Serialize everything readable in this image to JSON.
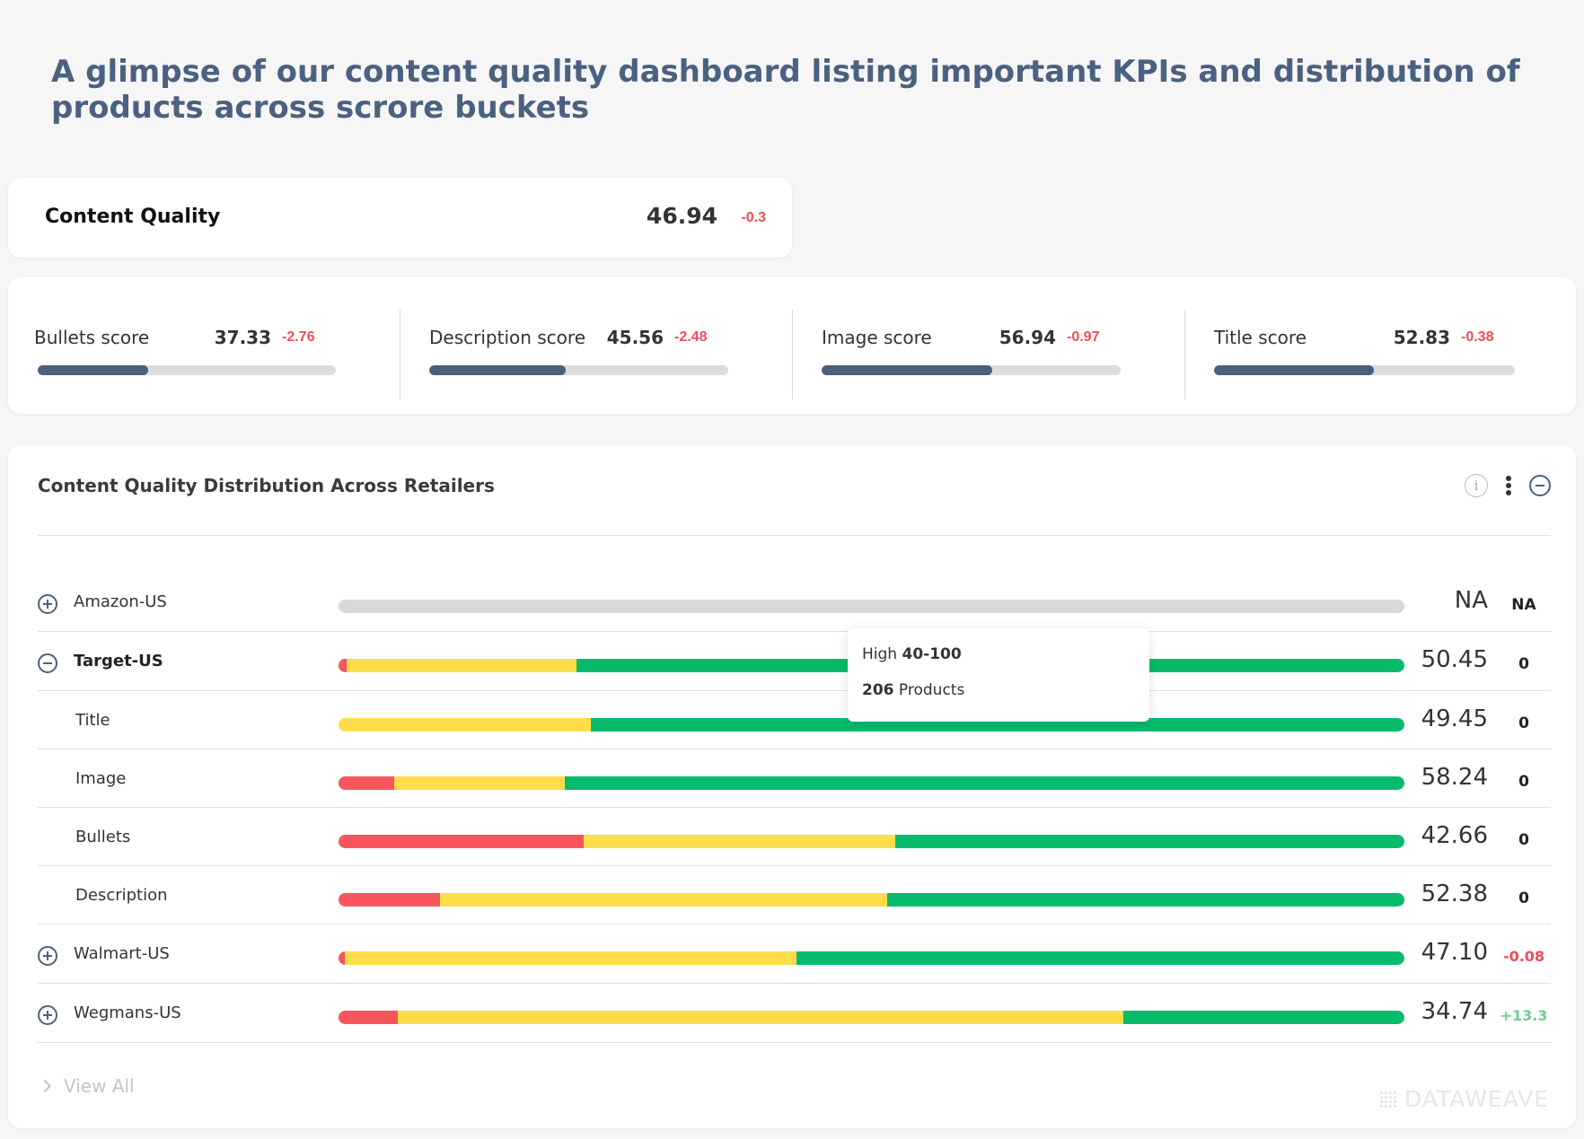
{
  "headline": "A glimpse of our content quality dashboard listing important KPIs and distribution of products across scrore buckets",
  "content_quality": {
    "label": "Content Quality",
    "value": "46.94",
    "delta": "-0.3"
  },
  "scores": [
    {
      "label": "Bullets score",
      "value": "37.33",
      "delta": "-2.76",
      "fill": 0.37
    },
    {
      "label": "Description score",
      "value": "45.56",
      "delta": "-2.48",
      "fill": 0.455
    },
    {
      "label": "Image score",
      "value": "56.94",
      "delta": "-0.97",
      "fill": 0.57
    },
    {
      "label": "Title score",
      "value": "52.83",
      "delta": "-0.38",
      "fill": 0.53
    }
  ],
  "distribution": {
    "title": "Content Quality Distribution Across Retailers",
    "rows": [
      {
        "name": "Amazon-US",
        "kind": "plus",
        "low": 0,
        "mid": 0,
        "high": 0,
        "score": "NA",
        "delta": "NA",
        "delta_type": "na"
      },
      {
        "name": "Target-US",
        "kind": "minus",
        "low": 0.008,
        "mid": 0.215,
        "high": 0.777,
        "score": "50.45",
        "delta": "0",
        "delta_type": "zero"
      },
      {
        "name": "Title",
        "kind": "sub",
        "low": 0,
        "mid": 0.237,
        "high": 0.763,
        "score": "49.45",
        "delta": "0",
        "delta_type": "zero"
      },
      {
        "name": "Image",
        "kind": "sub",
        "low": 0.052,
        "mid": 0.16,
        "high": 0.788,
        "score": "58.24",
        "delta": "0",
        "delta_type": "zero"
      },
      {
        "name": "Bullets",
        "kind": "sub",
        "low": 0.23,
        "mid": 0.292,
        "high": 0.478,
        "score": "42.66",
        "delta": "0",
        "delta_type": "zero"
      },
      {
        "name": "Description",
        "kind": "sub",
        "low": 0.095,
        "mid": 0.42,
        "high": 0.485,
        "score": "52.38",
        "delta": "0",
        "delta_type": "zero"
      },
      {
        "name": "Walmart-US",
        "kind": "plus",
        "low": 0.006,
        "mid": 0.424,
        "high": 0.57,
        "score": "47.10",
        "delta": "-0.08",
        "delta_type": "neg"
      },
      {
        "name": "Wegmans-US",
        "kind": "plus",
        "low": 0.056,
        "mid": 0.68,
        "high": 0.264,
        "score": "34.74",
        "delta": "+13.3",
        "delta_type": "pos"
      }
    ],
    "tooltip": {
      "bucket": "High",
      "range": "40-100",
      "count": "206",
      "unit": "Products"
    },
    "view_all": "View All",
    "watermark": "DATAWEAVE"
  },
  "colors": {
    "low": "#f6555e",
    "mid": "#ffdd4a",
    "high": "#06bb6b",
    "neutral": "#d9d9d9",
    "accent": "#4b6180",
    "negative": "#ee4d57",
    "positive": "#6fce93"
  },
  "icons": {
    "info": "info-icon",
    "menu": "kebab-menu-icon",
    "collapse": "collapse-icon",
    "expand": "expand-icon",
    "view_all": "chevron-right-icon"
  }
}
